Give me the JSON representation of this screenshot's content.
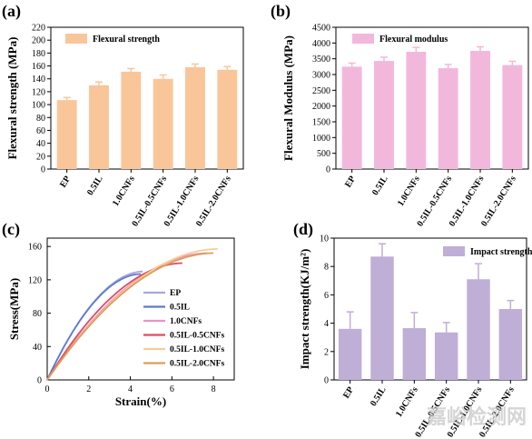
{
  "panels": {
    "a": "(a)",
    "b": "(b)",
    "c": "(c)",
    "d": "(d)"
  },
  "watermark": "嘉峪检测网",
  "chart_data": [
    {
      "id": "a",
      "type": "bar",
      "ylabel": "Flexural strength (MPa)",
      "xlabel": "",
      "ylim": [
        0,
        220
      ],
      "yticks": [
        0,
        20,
        40,
        60,
        80,
        100,
        120,
        140,
        160,
        180,
        200,
        220
      ],
      "categories": [
        "EP",
        "0.5IL",
        "1.0CNFs",
        "0.5IL-0.5CNFs",
        "0.5IL-1.0CNFs",
        "0.5IL-2.0CNFs"
      ],
      "series": [
        {
          "name": "Flexural strength",
          "values": [
            107,
            130,
            151,
            140,
            158,
            154
          ],
          "errors": [
            4,
            5,
            5,
            6,
            5,
            5
          ],
          "color": "#f9c69a"
        }
      ],
      "legend": "top-left"
    },
    {
      "id": "b",
      "type": "bar",
      "ylabel": "Flexural Modulus (MPa)",
      "xlabel": "",
      "ylim": [
        0,
        4500
      ],
      "yticks": [
        0,
        500,
        1000,
        1500,
        2000,
        2500,
        3000,
        3500,
        4000,
        4500
      ],
      "categories": [
        "EP",
        "0.5IL",
        "1.0CNFs",
        "0.5IL-0.5CNFs",
        "0.5IL-1.0CNFs",
        "0.5IL-2.0CNFs"
      ],
      "series": [
        {
          "name": "Flexural modulus",
          "values": [
            3250,
            3430,
            3720,
            3200,
            3750,
            3300
          ],
          "errors": [
            110,
            120,
            140,
            120,
            130,
            120
          ],
          "color": "#f2b8dc"
        }
      ],
      "legend": "top-left"
    },
    {
      "id": "c",
      "type": "line",
      "xlabel": "Strain(%)",
      "ylabel": "Stress(MPa)",
      "xlim": [
        0,
        9
      ],
      "ylim": [
        0,
        170
      ],
      "xticks": [
        0,
        2,
        4,
        6,
        8
      ],
      "yticks": [
        0,
        40,
        80,
        120,
        160
      ],
      "series": [
        {
          "name": "EP",
          "color": "#a9a6e0",
          "end_strain": 4.6,
          "end_stress": 130
        },
        {
          "name": "0.5IL",
          "color": "#5d7bd0",
          "end_strain": 4.5,
          "end_stress": 127
        },
        {
          "name": "1.0CNFs",
          "color": "#ec92c9",
          "end_strain": 7.7,
          "end_stress": 152
        },
        {
          "name": "0.5IL-0.5CNFs",
          "color": "#e04a63",
          "end_strain": 6.5,
          "end_stress": 140
        },
        {
          "name": "0.5IL-1.0CNFs",
          "color": "#f7cd96",
          "end_strain": 8.2,
          "end_stress": 157
        },
        {
          "name": "0.5IL-2.0CNFs",
          "color": "#d9a05a",
          "end_strain": 8.0,
          "end_stress": 152
        }
      ],
      "legend": "center-right"
    },
    {
      "id": "d",
      "type": "bar",
      "ylabel": "Impact strength(KJ/m²)",
      "xlabel": "",
      "ylim": [
        0,
        10
      ],
      "yticks": [
        0,
        2,
        4,
        6,
        8,
        10
      ],
      "categories": [
        "EP",
        "0.5IL",
        "1.0CNFs",
        "0.5IL-0.5CNFs",
        "0.5IL-1.0CNFs",
        "0.5IL-2.0CNFs"
      ],
      "series": [
        {
          "name": "Impact strength",
          "values": [
            3.6,
            8.7,
            3.65,
            3.35,
            7.1,
            5.0
          ],
          "errors": [
            1.2,
            0.9,
            1.1,
            0.7,
            1.1,
            0.6
          ],
          "color": "#bfaed6"
        }
      ],
      "legend": "top-right"
    }
  ]
}
